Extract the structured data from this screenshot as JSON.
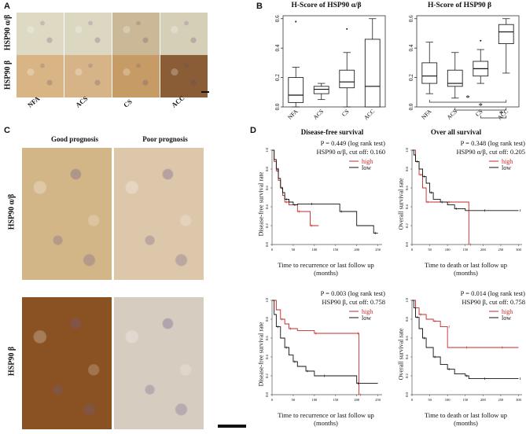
{
  "panels": {
    "a": "A",
    "b": "B",
    "c": "C",
    "d": "D"
  },
  "panel_a": {
    "rows": [
      "HSP90 α/β",
      "HSP90 β"
    ],
    "cols": [
      "NFA",
      "ACS",
      "CS",
      "ACC"
    ],
    "colors": [
      [
        "#ddd9c2",
        "#dcd7c1",
        "#cbb896",
        "#d6cfb7"
      ],
      [
        "#d9b585",
        "#d7b487",
        "#c79b66",
        "#8a5d36"
      ]
    ]
  },
  "panel_b": {
    "left_title": "H-Score of HSP90 α/β",
    "right_title": "H-Score of HSP90 β",
    "significance": "*"
  },
  "panel_c": {
    "col1": "Good prognosis",
    "col2": "Poor prognosis",
    "rows": [
      "HSP90 α/β",
      "HSP90 β"
    ],
    "colors": [
      [
        "#d3b688",
        "#ddc7ab"
      ],
      [
        "#8a5222",
        "#d7ccc0"
      ]
    ]
  },
  "panel_d": {
    "col1_title": "Disease-free survival",
    "col2_title": "Over all survival",
    "plots": [
      {
        "stat_p": "P = 0.449 (log rank test)",
        "stat_cut": "HSP90 α/β, cut off: 0.160",
        "ylabel": "Disease-free survival rate",
        "xlabel1": "Time to recurrence or last follow up",
        "xlabel2": "(months)"
      },
      {
        "stat_p": "P = 0.348 (log rank test)",
        "stat_cut": "HSP90 α/β, cut off: 0.205",
        "ylabel": "Overall survival rate",
        "xlabel1": "Time to death or last follow up",
        "xlabel2": "(months)"
      },
      {
        "stat_p": "P = 0.003 (log rank test)",
        "stat_cut": "HSP90 β, cut off: 0.758",
        "ylabel": "Disease-free survival rate",
        "xlabel1": "Time to recurrence or last follow up",
        "xlabel2": "(months)"
      },
      {
        "stat_p": "P = 0.014 (log rank test)",
        "stat_cut": "HSP90 β, cut off: 0.758",
        "ylabel": "Overall survival rate",
        "xlabel1": "Time to death or last follow up",
        "xlabel2": "(months)"
      }
    ],
    "legend_high": "high",
    "legend_low": "low",
    "high_color": "#c62828",
    "low_color": "#111111"
  },
  "chart_data": [
    {
      "type": "box",
      "title": "H-Score of HSP90 α/β",
      "categories": [
        "NFA",
        "ACS",
        "CS",
        "ACC"
      ],
      "yticks": [
        "0.0",
        "0.2",
        "0.4",
        "0.6"
      ],
      "ylim": [
        0,
        0.62
      ],
      "boxes": [
        {
          "min": 0.0,
          "q1": 0.03,
          "median": 0.08,
          "q3": 0.2,
          "max": 0.27,
          "outliers": [
            0.58
          ]
        },
        {
          "min": 0.05,
          "q1": 0.09,
          "median": 0.12,
          "q3": 0.14,
          "max": 0.16,
          "outliers": []
        },
        {
          "min": 0.0,
          "q1": 0.13,
          "median": 0.17,
          "q3": 0.25,
          "max": 0.37,
          "outliers": [
            0.53
          ]
        },
        {
          "min": 0.0,
          "q1": 0.0,
          "median": 0.14,
          "q3": 0.46,
          "max": 0.6,
          "outliers": []
        }
      ]
    },
    {
      "type": "box",
      "title": "H-Score of HSP90 β",
      "categories": [
        "NFA",
        "ACS",
        "CS",
        "ACC"
      ],
      "yticks": [
        "0.0",
        "0.2",
        "0.4",
        "0.6"
      ],
      "ylim": [
        0,
        0.62
      ],
      "boxes": [
        {
          "min": 0.09,
          "q1": 0.16,
          "median": 0.21,
          "q3": 0.3,
          "max": 0.44,
          "outliers": []
        },
        {
          "min": 0.06,
          "q1": 0.14,
          "median": 0.16,
          "q3": 0.25,
          "max": 0.37,
          "outliers": []
        },
        {
          "min": 0.16,
          "q1": 0.21,
          "median": 0.26,
          "q3": 0.31,
          "max": 0.39,
          "outliers": [
            0.45
          ]
        },
        {
          "min": 0.23,
          "q1": 0.43,
          "median": 0.51,
          "q3": 0.56,
          "max": 0.6,
          "outliers": []
        }
      ],
      "significance_pairs": [
        [
          "NFA",
          "ACC"
        ],
        [
          "ACS",
          "ACC"
        ],
        [
          "CS",
          "ACC"
        ]
      ]
    },
    {
      "type": "line",
      "title": "Disease-free survival",
      "xticks": [
        "0",
        "50",
        "100",
        "150",
        "200",
        "250"
      ],
      "xlim": [
        0,
        260
      ],
      "yticks": [
        "0.0",
        "0.2",
        "0.4",
        "0.6",
        "0.8",
        "1.0"
      ],
      "ylim": [
        0,
        1
      ],
      "series": [
        {
          "name": "high",
          "x": [
            0,
            5,
            10,
            15,
            20,
            25,
            30,
            40,
            60,
            80,
            90,
            110
          ],
          "y": [
            1,
            0.88,
            0.78,
            0.68,
            0.6,
            0.52,
            0.45,
            0.42,
            0.35,
            0.35,
            0.2,
            0.2
          ]
        },
        {
          "name": "low",
          "x": [
            0,
            5,
            10,
            15,
            20,
            25,
            30,
            40,
            50,
            60,
            90,
            120,
            160,
            200,
            240,
            250
          ],
          "y": [
            1,
            0.9,
            0.8,
            0.7,
            0.6,
            0.55,
            0.48,
            0.45,
            0.42,
            0.43,
            0.43,
            0.43,
            0.35,
            0.2,
            0.12,
            0.12
          ]
        }
      ]
    },
    {
      "type": "line",
      "title": "Over all survival",
      "xticks": [
        "0",
        "50",
        "100",
        "150",
        "200",
        "250",
        "300"
      ],
      "xlim": [
        0,
        310
      ],
      "yticks": [
        "0.0",
        "0.2",
        "0.4",
        "0.6",
        "0.8",
        "1.0"
      ],
      "ylim": [
        0,
        1
      ],
      "series": [
        {
          "name": "high",
          "x": [
            0,
            10,
            20,
            30,
            40,
            60,
            100,
            160,
            160
          ],
          "y": [
            1,
            0.88,
            0.74,
            0.6,
            0.45,
            0.45,
            0.45,
            0.45,
            0.0
          ]
        },
        {
          "name": "low",
          "x": [
            0,
            5,
            10,
            20,
            30,
            40,
            50,
            60,
            80,
            100,
            120,
            150,
            200,
            250,
            300
          ],
          "y": [
            1,
            0.95,
            0.88,
            0.8,
            0.72,
            0.65,
            0.55,
            0.48,
            0.45,
            0.42,
            0.38,
            0.36,
            0.36,
            0.36,
            0.36
          ]
        }
      ]
    },
    {
      "type": "line",
      "title": "Disease-free survival",
      "xticks": [
        "0",
        "50",
        "100",
        "150",
        "200",
        "250"
      ],
      "xlim": [
        0,
        260
      ],
      "yticks": [
        "0.0",
        "0.2",
        "0.4",
        "0.6",
        "0.8",
        "1.0"
      ],
      "ylim": [
        0,
        1
      ],
      "series": [
        {
          "name": "high",
          "x": [
            0,
            10,
            20,
            30,
            40,
            60,
            100,
            150,
            200,
            205,
            205
          ],
          "y": [
            1,
            0.9,
            0.8,
            0.75,
            0.7,
            0.68,
            0.65,
            0.65,
            0.65,
            0.65,
            0.0
          ]
        },
        {
          "name": "low",
          "x": [
            0,
            5,
            10,
            20,
            30,
            40,
            50,
            60,
            80,
            100,
            120,
            150,
            200,
            250
          ],
          "y": [
            1,
            0.85,
            0.72,
            0.6,
            0.5,
            0.42,
            0.35,
            0.3,
            0.25,
            0.2,
            0.2,
            0.2,
            0.12,
            0.12
          ]
        }
      ]
    },
    {
      "type": "line",
      "title": "Over all survival",
      "xticks": [
        "0",
        "50",
        "100",
        "150",
        "200",
        "250",
        "300"
      ],
      "xlim": [
        0,
        310
      ],
      "yticks": [
        "0.0",
        "0.2",
        "0.4",
        "0.6",
        "0.8",
        "1.0"
      ],
      "ylim": [
        0,
        1
      ],
      "series": [
        {
          "name": "high",
          "x": [
            0,
            10,
            20,
            40,
            60,
            80,
            100,
            100,
            150,
            200,
            250,
            300
          ],
          "y": [
            1,
            0.92,
            0.85,
            0.8,
            0.78,
            0.72,
            0.72,
            0.5,
            0.5,
            0.5,
            0.5,
            0.5
          ]
        },
        {
          "name": "low",
          "x": [
            0,
            5,
            10,
            20,
            30,
            40,
            60,
            80,
            100,
            120,
            150,
            160,
            200,
            250,
            300
          ],
          "y": [
            1,
            0.92,
            0.82,
            0.7,
            0.6,
            0.5,
            0.4,
            0.32,
            0.27,
            0.22,
            0.2,
            0.17,
            0.17,
            0.17,
            0.17
          ]
        }
      ]
    }
  ]
}
